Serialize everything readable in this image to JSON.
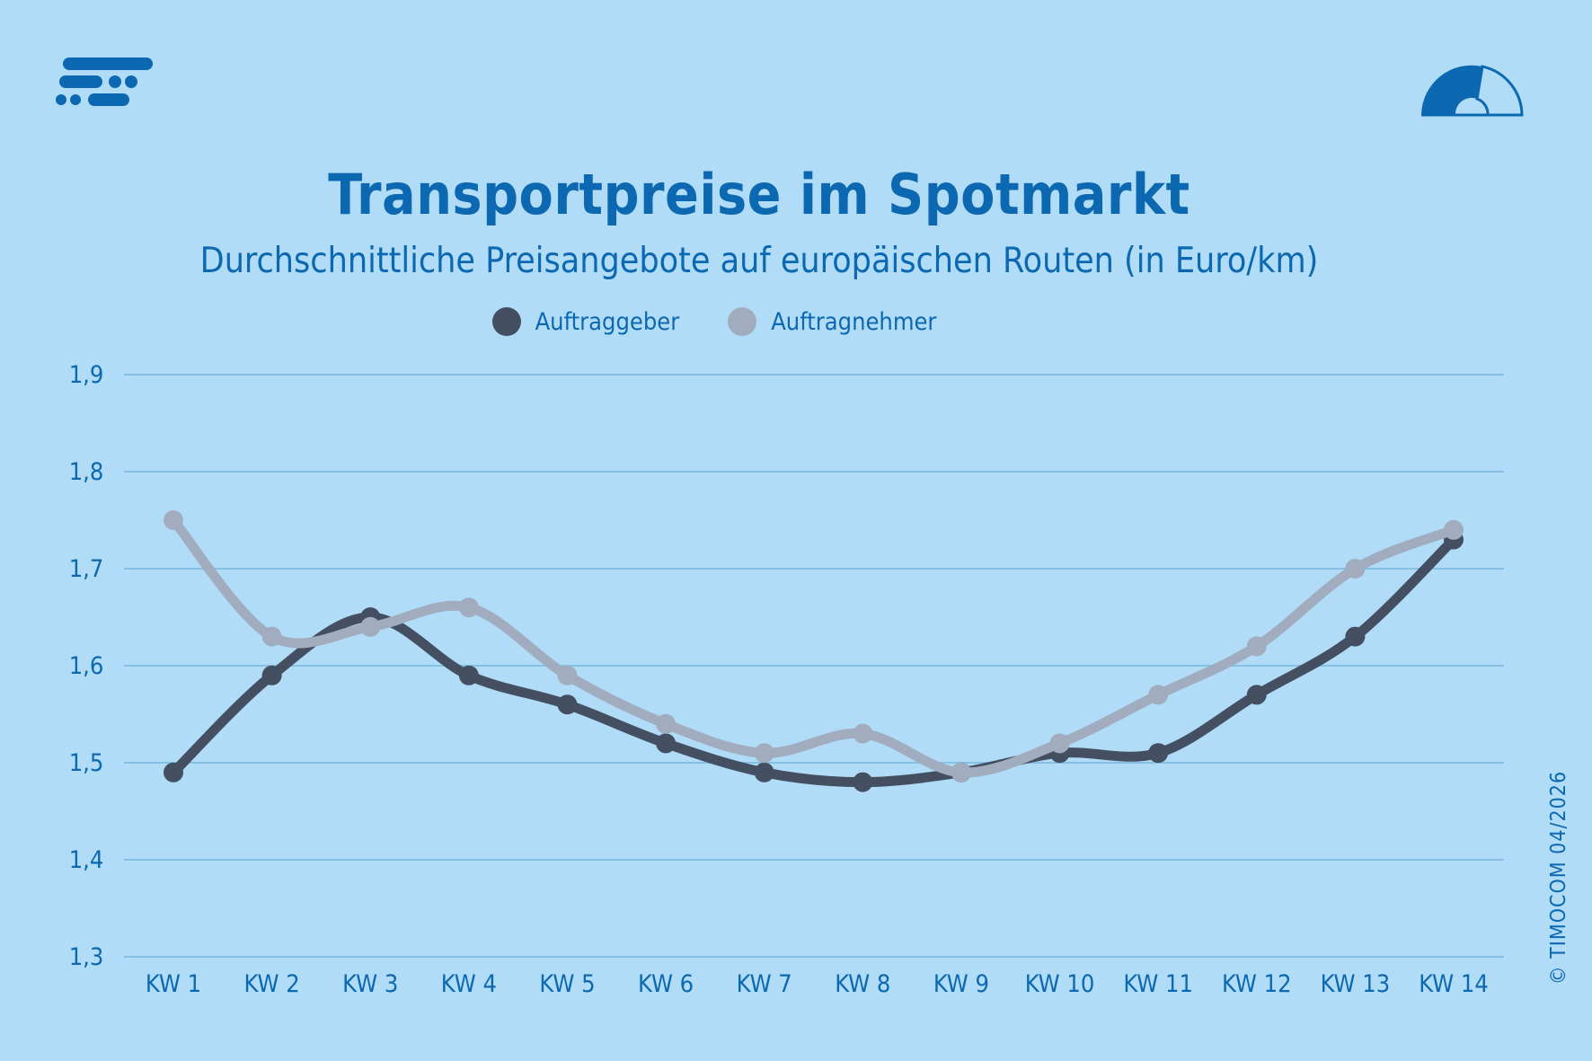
{
  "header": {
    "title": "Transportpreise im Spotmarkt",
    "subtitle": "Durchschnittliche Preisangebote auf europäischen Routen (in Euro/km)",
    "logo_icon": "timocom-logo-icon",
    "gauge_icon": "speedometer-gauge-icon",
    "copyright": "© TIMOCOM  04/2026"
  },
  "colors": {
    "background": "#b0dcf8",
    "text": "#0b68b1",
    "grid": "#86c0e2",
    "auftraggeber": "#444f62",
    "auftragnehmer": "#a2acbf"
  },
  "chart_data": {
    "type": "line",
    "title": "Transportpreise im Spotmarkt",
    "subtitle": "Durchschnittliche Preisangebote auf europäischen Routen (in Euro/km)",
    "categories": [
      "KW 1",
      "KW 2",
      "KW 3",
      "KW 4",
      "KW 5",
      "KW 6",
      "KW 7",
      "KW 8",
      "KW 9",
      "KW 10",
      "KW 11",
      "KW 12",
      "KW 13",
      "KW 14"
    ],
    "y_ticks": [
      "1,3",
      "1,4",
      "1,5",
      "1,6",
      "1,7",
      "1,8",
      "1,9"
    ],
    "ylim": [
      1.3,
      1.9
    ],
    "grid": true,
    "smooth": true,
    "legend_position": "top-center",
    "series": [
      {
        "name": "Auftraggeber",
        "values": [
          1.49,
          1.59,
          1.65,
          1.59,
          1.56,
          1.52,
          1.49,
          1.48,
          1.49,
          1.51,
          1.51,
          1.57,
          1.63,
          1.73
        ]
      },
      {
        "name": "Auftragnehmer",
        "values": [
          1.75,
          1.63,
          1.64,
          1.66,
          1.59,
          1.54,
          1.51,
          1.53,
          1.49,
          1.52,
          1.57,
          1.62,
          1.7,
          1.74
        ]
      }
    ]
  }
}
